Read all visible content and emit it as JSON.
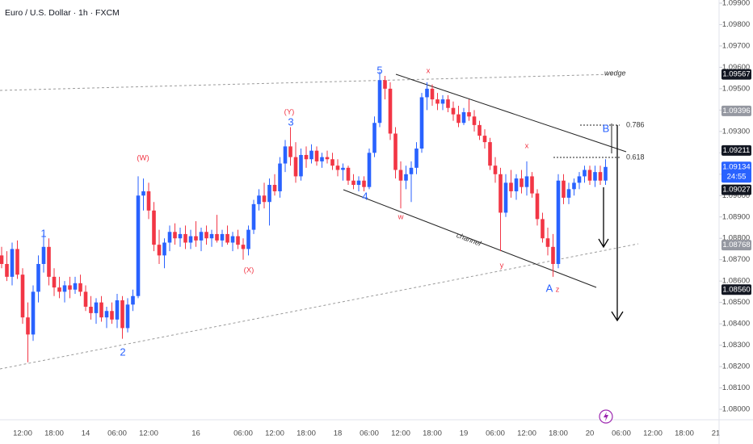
{
  "chart_data": {
    "type": "candlestick",
    "title": "Euro / U.S. Dollar · 1h · FXCM",
    "up_color": "#2962ff",
    "down_color": "#f23645",
    "grid": false,
    "ylim": [
      1.07951,
      1.09915
    ],
    "yticks": [
      {
        "value": 1.08,
        "label": "1.08000"
      },
      {
        "value": 1.081,
        "label": "1.08100"
      },
      {
        "value": 1.082,
        "label": "1.08200"
      },
      {
        "value": 1.083,
        "label": "1.08300"
      },
      {
        "value": 1.084,
        "label": "1.08400"
      },
      {
        "value": 1.085,
        "label": "1.08500"
      },
      {
        "value": 1.086,
        "label": "1.08600"
      },
      {
        "value": 1.087,
        "label": "1.08700"
      },
      {
        "value": 1.088,
        "label": "1.08800"
      },
      {
        "value": 1.089,
        "label": "1.08900"
      },
      {
        "value": 1.09,
        "label": "1.09000"
      },
      {
        "value": 1.091,
        "label": "1.09100"
      },
      {
        "value": 1.092,
        "label": "1.09200"
      },
      {
        "value": 1.093,
        "label": "1.09300"
      },
      {
        "value": 1.094,
        "label": "1.09400"
      },
      {
        "value": 1.095,
        "label": "1.09500"
      },
      {
        "value": 1.096,
        "label": "1.09600"
      },
      {
        "value": 1.097,
        "label": "1.09700"
      },
      {
        "value": 1.098,
        "label": "1.09800"
      },
      {
        "value": 1.099,
        "label": "1.09900"
      }
    ],
    "categories": [
      null,
      null,
      null,
      null,
      "12:00",
      null,
      null,
      null,
      null,
      null,
      "18:00",
      null,
      null,
      null,
      null,
      null,
      "14",
      null,
      null,
      null,
      null,
      null,
      "06:00",
      null,
      null,
      null,
      null,
      null,
      "12:00",
      null,
      null,
      null,
      null,
      null,
      null,
      null,
      null,
      "16",
      null,
      null,
      null,
      null,
      null,
      null,
      null,
      null,
      "06:00",
      null,
      null,
      null,
      null,
      null,
      "12:00",
      null,
      null,
      null,
      null,
      null,
      "18:00",
      null,
      null,
      null,
      null,
      null,
      "18",
      null,
      null,
      null,
      null,
      null,
      "06:00",
      null,
      null,
      null,
      null,
      null,
      "12:00",
      null,
      null,
      null,
      null,
      null,
      "18:00",
      null,
      null,
      null,
      null,
      null,
      "19",
      null,
      null,
      null,
      null,
      null,
      "06:00",
      null,
      null,
      null,
      null,
      null,
      "12:00",
      null,
      null,
      null,
      null,
      null,
      "18:00",
      null,
      null,
      null,
      null,
      null,
      "20",
      null,
      null,
      null,
      null,
      null,
      "06:00",
      null,
      null,
      null,
      null,
      null,
      "12:00",
      null,
      null,
      null,
      null,
      null,
      "18:00",
      null,
      null,
      null,
      null,
      null,
      "21"
    ],
    "open": [
      1.0872,
      1.0868,
      1.0862,
      1.0875,
      1.0863,
      1.0843,
      1.0835,
      1.0855,
      1.0868,
      1.0876,
      1.0862,
      1.0857,
      1.0855,
      1.0858,
      1.0856,
      1.0859,
      1.0855,
      1.0848,
      1.0845,
      1.085,
      1.0843,
      1.0846,
      1.0842,
      1.0851,
      1.0838,
      1.0849,
      1.0853,
      1.09,
      1.0902,
      1.0893,
      1.0877,
      1.0872,
      1.0878,
      1.0883,
      1.088,
      1.0882,
      1.0878,
      1.0881,
      1.0879,
      1.0883,
      1.088,
      1.0882,
      1.0879,
      1.0882,
      1.0878,
      1.0881,
      1.0877,
      1.0875,
      1.0884,
      1.0896,
      1.09,
      1.0897,
      1.0905,
      1.0902,
      1.0915,
      1.0923,
      1.0918,
      1.0909,
      1.0919,
      1.0917,
      1.0921,
      1.0916,
      1.0918,
      1.0917,
      1.0914,
      1.0912,
      1.0913,
      1.0907,
      1.0905,
      1.0907,
      1.0904,
      1.092,
      1.0934,
      1.0954,
      1.095,
      1.0929,
      1.0912,
      1.0907,
      1.091,
      1.0913,
      1.0922,
      1.0946,
      1.095,
      1.0945,
      1.0943,
      1.0945,
      1.0941,
      1.0938,
      1.0934,
      1.0939,
      1.0937,
      1.0933,
      1.0928,
      1.0925,
      1.0914,
      1.091,
      1.0892,
      1.0906,
      1.0902,
      1.0908,
      1.0904,
      1.0909,
      1.0901,
      1.0889,
      1.088,
      1.0876,
      1.0868,
      1.0907,
      1.0899,
      1.0903,
      1.0906,
      1.0909,
      1.0912,
      1.0907,
      1.0911,
      1.0907,
      null,
      null,
      null,
      null,
      null,
      null,
      null,
      null,
      null,
      null,
      null,
      null,
      null,
      null,
      null,
      null,
      null,
      null,
      null,
      null,
      null
    ],
    "high": [
      1.0876,
      1.0874,
      1.0878,
      1.0879,
      1.0866,
      1.085,
      1.0858,
      1.0872,
      1.0882,
      1.088,
      1.0866,
      1.0862,
      1.086,
      1.0862,
      1.0862,
      1.0863,
      1.0858,
      1.0853,
      1.0852,
      1.0853,
      1.0848,
      1.085,
      1.0854,
      1.0853,
      1.0852,
      1.0856,
      1.0909,
      1.0908,
      1.0906,
      1.0897,
      1.0884,
      1.088,
      1.0886,
      1.0887,
      1.0885,
      1.0886,
      1.0884,
      1.0888,
      1.0885,
      1.0886,
      1.0884,
      1.0891,
      1.0884,
      1.0886,
      1.0883,
      1.0884,
      1.088,
      1.0886,
      1.0898,
      1.0903,
      1.0906,
      1.0908,
      1.091,
      1.0918,
      1.0926,
      1.0932,
      1.0925,
      1.0922,
      1.0923,
      1.0924,
      1.0923,
      1.092,
      1.0921,
      1.092,
      1.0917,
      1.0915,
      1.0914,
      1.091,
      1.0909,
      1.0909,
      1.0922,
      1.0937,
      1.0958,
      1.0956,
      1.0953,
      1.0932,
      1.0916,
      1.0914,
      1.0916,
      1.0925,
      1.0948,
      1.0953,
      1.0952,
      1.0948,
      1.0947,
      1.0947,
      1.0944,
      1.0942,
      1.0941,
      1.0945,
      1.094,
      1.0935,
      1.0931,
      1.0927,
      1.0918,
      1.0913,
      1.091,
      1.0912,
      1.091,
      1.0912,
      1.0916,
      1.0911,
      1.0903,
      1.0892,
      1.0885,
      1.0882,
      1.091,
      1.091,
      1.0906,
      1.0908,
      1.0911,
      1.0914,
      1.0914,
      1.0914,
      1.0914,
      1.0917,
      null,
      null,
      null,
      null,
      null,
      null,
      null,
      null,
      null,
      null,
      null,
      null,
      null,
      null,
      null,
      null,
      null,
      null,
      null,
      null,
      null
    ],
    "low": [
      1.0866,
      1.086,
      1.0858,
      1.0861,
      1.084,
      1.0822,
      1.0832,
      1.085,
      1.0864,
      1.0858,
      1.0853,
      1.0852,
      1.085,
      1.0852,
      1.0854,
      1.0853,
      1.0846,
      1.0842,
      1.084,
      1.0841,
      1.0838,
      1.084,
      1.0838,
      1.0833,
      1.0836,
      1.0846,
      1.0852,
      1.0893,
      1.0889,
      1.0874,
      1.0868,
      1.0866,
      1.0874,
      1.0877,
      1.0876,
      1.0875,
      1.0875,
      1.0876,
      1.0874,
      1.0877,
      1.0876,
      1.0878,
      1.0876,
      1.0877,
      1.0874,
      1.0875,
      1.087,
      1.0872,
      1.0882,
      1.0893,
      1.0894,
      1.0886,
      1.09,
      1.0899,
      1.0911,
      1.0914,
      1.0906,
      1.0907,
      1.0913,
      1.0915,
      1.0914,
      1.0913,
      1.0915,
      1.0912,
      1.0909,
      1.0907,
      1.0905,
      1.0903,
      1.0902,
      1.0902,
      1.0903,
      1.0918,
      1.0932,
      1.0945,
      1.0926,
      1.0908,
      1.0894,
      1.0903,
      1.0897,
      1.091,
      1.092,
      1.094,
      1.0942,
      1.094,
      1.094,
      1.0939,
      1.0935,
      1.0932,
      1.0933,
      1.0935,
      1.093,
      1.0926,
      1.0922,
      1.0912,
      1.0906,
      1.0874,
      1.089,
      1.0899,
      1.0898,
      1.0901,
      1.09,
      1.0899,
      1.0886,
      1.0878,
      1.0872,
      1.0862,
      1.0866,
      1.0896,
      1.0896,
      1.09,
      1.0903,
      1.0906,
      1.0905,
      1.0904,
      1.0905,
      1.0905,
      null,
      null,
      null,
      null,
      null,
      null,
      null,
      null,
      null,
      null,
      null,
      null,
      null,
      null,
      null,
      null,
      null,
      null,
      null,
      null,
      null
    ],
    "close": [
      1.0868,
      1.0862,
      1.0875,
      1.0863,
      1.0843,
      1.0835,
      1.0855,
      1.0868,
      1.0876,
      1.0862,
      1.0857,
      1.0855,
      1.0858,
      1.0856,
      1.0859,
      1.0855,
      1.0848,
      1.0845,
      1.085,
      1.0843,
      1.0846,
      1.0842,
      1.0851,
      1.0838,
      1.0849,
      1.0853,
      1.09,
      1.0902,
      1.0893,
      1.0877,
      1.0872,
      1.0878,
      1.0883,
      1.088,
      1.0882,
      1.0878,
      1.0881,
      1.0879,
      1.0883,
      1.088,
      1.0882,
      1.0879,
      1.0882,
      1.0878,
      1.0881,
      1.0877,
      1.0875,
      1.0884,
      1.0896,
      1.09,
      1.0897,
      1.0905,
      1.0902,
      1.0915,
      1.0923,
      1.0918,
      1.0909,
      1.0919,
      1.0917,
      1.0921,
      1.0916,
      1.0918,
      1.0917,
      1.0914,
      1.0912,
      1.0913,
      1.0907,
      1.0905,
      1.0907,
      1.0904,
      1.092,
      1.0934,
      1.0954,
      1.095,
      1.0929,
      1.0912,
      1.0907,
      1.091,
      1.0913,
      1.0922,
      1.0946,
      1.095,
      1.0945,
      1.0943,
      1.0945,
      1.0941,
      1.0938,
      1.0934,
      1.0939,
      1.0937,
      1.0933,
      1.0928,
      1.0925,
      1.0914,
      1.091,
      1.0892,
      1.0906,
      1.0902,
      1.0908,
      1.0904,
      1.0909,
      1.0901,
      1.0889,
      1.088,
      1.0876,
      1.0868,
      1.0907,
      1.0899,
      1.0903,
      1.0906,
      1.0909,
      1.0912,
      1.0907,
      1.0911,
      1.0907,
      1.09134,
      null,
      null,
      null,
      null,
      null,
      null,
      null,
      null,
      null,
      null,
      null,
      null,
      null,
      null,
      null,
      null,
      null,
      null,
      null,
      null,
      null
    ],
    "price_labels": [
      {
        "value": 1.09567,
        "label": "1.09567",
        "color": "#131722"
      },
      {
        "value": 1.09396,
        "label": "1.09396",
        "color": "#9598a1"
      },
      {
        "value": 1.09211,
        "label": "1.09211",
        "color": "#131722"
      },
      {
        "value": 1.09134,
        "label": "1.09134",
        "color": "#2962ff",
        "countdown": "24:55"
      },
      {
        "value": 1.09027,
        "label": "1.09027",
        "color": "#131722"
      },
      {
        "value": 1.08768,
        "label": "1.08768",
        "color": "#9598a1"
      },
      {
        "value": 1.0856,
        "label": "1.08560",
        "color": "#131722"
      }
    ],
    "annotations": [
      {
        "text": "1",
        "color": "#2962ff"
      },
      {
        "text": "2",
        "color": "#2962ff"
      },
      {
        "text": "(W)",
        "color": "#f23645"
      },
      {
        "text": "(X)",
        "color": "#f23645"
      },
      {
        "text": "(Y)",
        "color": "#f23645"
      },
      {
        "text": "3",
        "color": "#2962ff"
      },
      {
        "text": "4",
        "color": "#2962ff"
      },
      {
        "text": "5",
        "color": "#2962ff"
      },
      {
        "text": "w",
        "color": "#f23645"
      },
      {
        "text": "x",
        "color": "#f23645"
      },
      {
        "text": "x",
        "color": "#f23645"
      },
      {
        "text": "y",
        "color": "#f23645"
      },
      {
        "text": "A",
        "color": "#2962ff"
      },
      {
        "text": "z",
        "color": "#f23645"
      },
      {
        "text": "B",
        "color": "#2962ff"
      }
    ],
    "drawing_labels": {
      "wedge": "wedge",
      "channel": "channel",
      "fib_786": "0.786",
      "fib_618": "0.618"
    }
  }
}
